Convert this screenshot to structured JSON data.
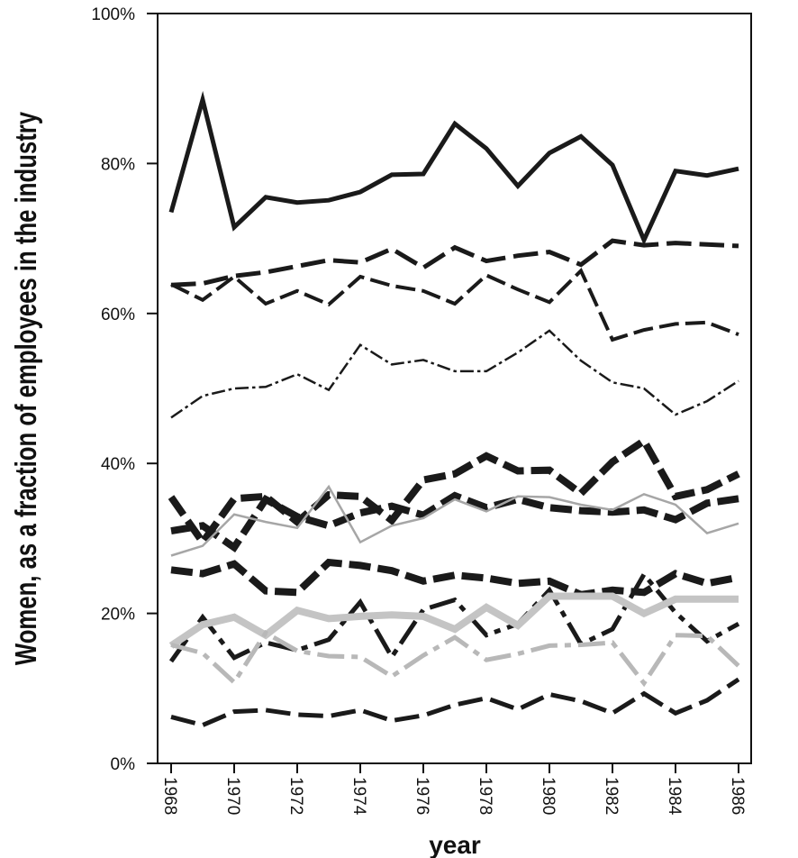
{
  "chart_data": {
    "type": "line",
    "title": "",
    "xlabel": "year",
    "ylabel": "Women, as a fraction of employees in the industry",
    "xlim": [
      1968,
      1986
    ],
    "ylim": [
      0,
      100
    ],
    "x_ticks": [
      "1968",
      "1970",
      "1972",
      "1974",
      "1976",
      "1978",
      "1980",
      "1982",
      "1984",
      "1986"
    ],
    "y_ticks": [
      "0%",
      "20%",
      "40%",
      "60%",
      "80%",
      "100%"
    ],
    "grid": false,
    "legend": "none",
    "x": [
      1968,
      1969,
      1970,
      1971,
      1972,
      1973,
      1974,
      1975,
      1976,
      1977,
      1978,
      1979,
      1980,
      1981,
      1982,
      1983,
      1984,
      1985,
      1986
    ],
    "series": [
      {
        "values": [
          73.5,
          88.5,
          71.5,
          75.5,
          74.8,
          75.1,
          76.2,
          78.5,
          78.6,
          85.3,
          82,
          77,
          81.4,
          83.6,
          79.8,
          69.8,
          79,
          78.4,
          79.3
        ],
        "color": "#1a1a1a",
        "style": "solid",
        "width": "thick"
      },
      {
        "values": [
          63.8,
          64,
          65,
          65.5,
          66.3,
          67.1,
          66.8,
          68.6,
          66.1,
          68.8,
          67,
          67.7,
          68.2,
          66.5,
          69.7,
          69.1,
          69.4,
          69.2,
          69
        ],
        "color": "#1a1a1a",
        "style": "long-dash",
        "width": "thick"
      },
      {
        "values": [
          63.9,
          61.8,
          64.9,
          61.3,
          63,
          61.2,
          64.9,
          63.7,
          63,
          61.3,
          65.1,
          63.2,
          61.5,
          65.7,
          56.5,
          57.8,
          58.6,
          58.8,
          57.2
        ],
        "color": "#1a1a1a",
        "style": "long-dash",
        "width": "medium"
      },
      {
        "values": [
          46.1,
          49,
          50,
          50.2,
          51.9,
          49.8,
          55.8,
          53.2,
          53.8,
          52.3,
          52.3,
          54.8,
          57.7,
          53.7,
          50.8,
          50,
          46.5,
          48.3,
          51
        ],
        "color": "#1a1a1a",
        "style": "dash-dot",
        "width": "thin"
      },
      {
        "values": [
          35.5,
          29.5,
          35.3,
          35.6,
          32.2,
          35.8,
          35.6,
          32.4,
          37.8,
          38.6,
          41,
          39,
          39.1,
          36,
          40.2,
          43,
          35.6,
          36.5,
          38.6
        ],
        "color": "#1a1a1a",
        "style": "heavy-dash",
        "width": "heavy"
      },
      {
        "values": [
          31,
          31.7,
          28.8,
          35.2,
          32.9,
          31.7,
          33.4,
          34.3,
          33.1,
          35.7,
          34.1,
          35.2,
          34.1,
          33.7,
          33.5,
          33.8,
          32.5,
          34.7,
          35.3
        ],
        "color": "#1a1a1a",
        "style": "heavy-dash",
        "width": "heavy"
      },
      {
        "values": [
          27.7,
          29,
          33.2,
          32.2,
          31.4,
          36.9,
          29.5,
          31.7,
          32.7,
          35.2,
          33.6,
          35.6,
          35.5,
          34.5,
          33.8,
          35.9,
          34.5,
          30.7,
          32
        ],
        "color": "#a6a6a6",
        "style": "solid",
        "width": "thin"
      },
      {
        "values": [
          25.8,
          25.3,
          26.6,
          23,
          22.8,
          26.8,
          26.4,
          25.7,
          24.3,
          25.1,
          24.7,
          24,
          24.3,
          22.5,
          23.1,
          22.8,
          25.3,
          24,
          24.8
        ],
        "color": "#1a1a1a",
        "style": "heavy-dash",
        "width": "heavy"
      },
      {
        "values": [
          13.6,
          19.5,
          14.1,
          16.1,
          15.1,
          16.5,
          21.5,
          14.2,
          20.5,
          21.8,
          17.1,
          18.6,
          23.1,
          15.9,
          17.9,
          25.2,
          20.1,
          16.3,
          18.6
        ],
        "color": "#1a1a1a",
        "style": "dash-dot",
        "width": "thick"
      },
      {
        "values": [
          15.7,
          18.5,
          19.5,
          17.1,
          20.4,
          19.3,
          19.6,
          19.8,
          19.6,
          17.9,
          20.8,
          18.4,
          22.3,
          22.3,
          22.3,
          20,
          21.9,
          21.9,
          21.9
        ],
        "color": "#c4c4c4",
        "style": "solid",
        "width": "heavy"
      },
      {
        "values": [
          15.8,
          14.7,
          10.8,
          17.4,
          15,
          14.3,
          14.2,
          11.6,
          14.4,
          16.8,
          13.8,
          14.6,
          15.7,
          15.8,
          16.1,
          10.7,
          17.1,
          17,
          13
        ],
        "color": "#b8b8b8",
        "style": "dash-dot",
        "width": "thick"
      },
      {
        "values": [
          6.2,
          5.1,
          6.9,
          7.1,
          6.5,
          6.3,
          7.1,
          5.7,
          6.4,
          7.8,
          8.7,
          7.2,
          9.2,
          8.3,
          6.7,
          9.3,
          6.7,
          8.4,
          11.2
        ],
        "color": "#1a1a1a",
        "style": "long-dash",
        "width": "thick"
      }
    ]
  }
}
